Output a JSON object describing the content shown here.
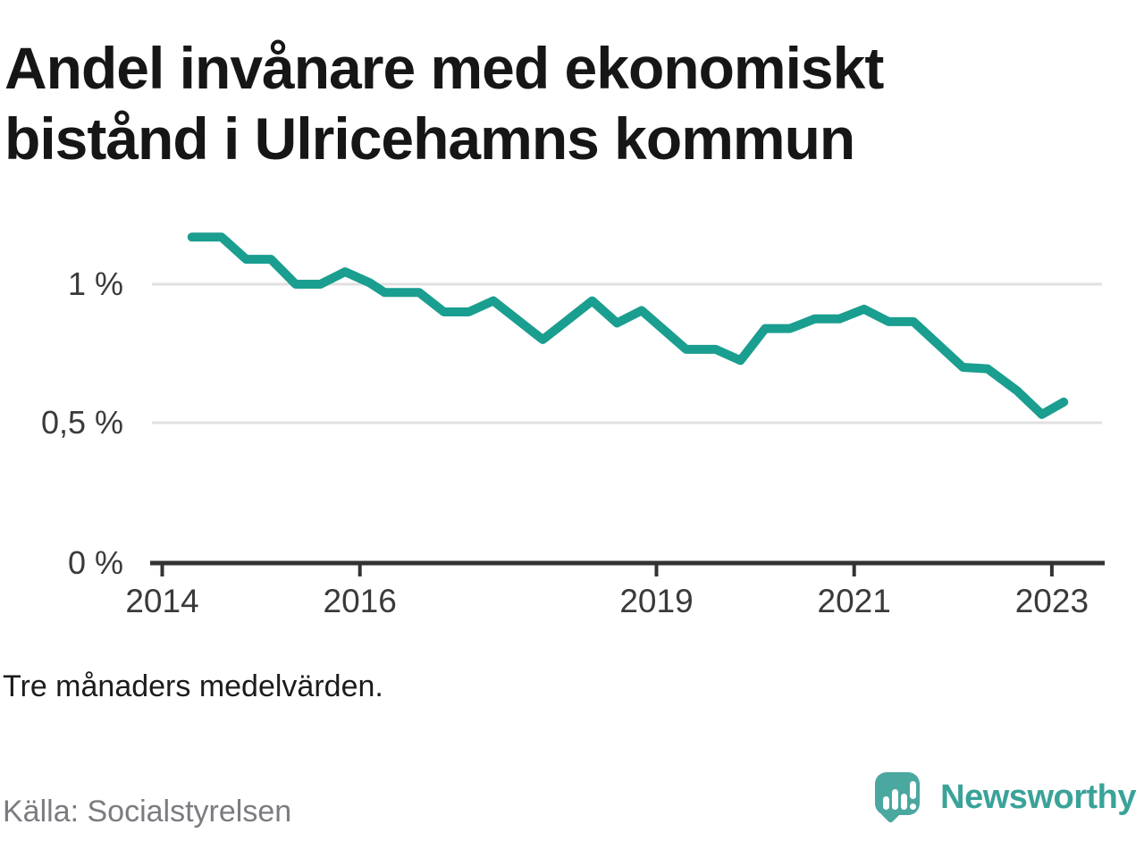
{
  "title": {
    "line1": "Andel invånare med ekonomiskt",
    "line2": "bistånd i Ulricehamns kommun"
  },
  "note": "Tre månaders medelvärden.",
  "source": "Källa: Socialstyrelsen",
  "logo": {
    "text": "Newsworthy"
  },
  "colors": {
    "line": "#1a9e8f",
    "grid": "#e0e0e0",
    "axis": "#333333",
    "tick_label": "#3a3a3a",
    "title": "#161616",
    "note": "#1c1c1c",
    "source": "#7c7b80",
    "logo_bubble": "#4aa8a0",
    "logo_text": "#3aa299"
  },
  "chart_data": {
    "type": "line",
    "title": "Andel invånare med ekonomiskt bistånd i Ulricehamns kommun",
    "subtitle_note": "Tre månaders medelvärden.",
    "xlabel": "",
    "ylabel": "",
    "x_unit": "år (decimal)",
    "y_unit": "% av invånare",
    "xlim": [
      2013.9,
      2023.55
    ],
    "ylim": [
      0,
      1.25
    ],
    "grid": "horizontal",
    "legend": "none",
    "xticks": [
      {
        "value": 2014,
        "label": "2014"
      },
      {
        "value": 2016,
        "label": "2016"
      },
      {
        "value": 2019,
        "label": "2019"
      },
      {
        "value": 2021,
        "label": "2021"
      },
      {
        "value": 2023,
        "label": "2023"
      }
    ],
    "yticks": [
      {
        "value": 1,
        "label": "1 %"
      },
      {
        "value": 0.5,
        "label": "0,5 %"
      },
      {
        "value": 0,
        "label": "0 %"
      }
    ],
    "series": [
      {
        "name": "Andel invånare med ekonomiskt bistånd",
        "color": "#1a9e8f",
        "points": [
          [
            2014.3,
            1.17
          ],
          [
            2014.6,
            1.17
          ],
          [
            2014.85,
            1.09
          ],
          [
            2015.1,
            1.09
          ],
          [
            2015.35,
            1.0
          ],
          [
            2015.6,
            1.0
          ],
          [
            2015.85,
            1.045
          ],
          [
            2016.1,
            1.005
          ],
          [
            2016.25,
            0.97
          ],
          [
            2016.6,
            0.97
          ],
          [
            2016.85,
            0.9
          ],
          [
            2017.1,
            0.9
          ],
          [
            2017.35,
            0.94
          ],
          [
            2017.85,
            0.8
          ],
          [
            2018.35,
            0.94
          ],
          [
            2018.6,
            0.86
          ],
          [
            2018.85,
            0.905
          ],
          [
            2019.3,
            0.765
          ],
          [
            2019.6,
            0.765
          ],
          [
            2019.85,
            0.725
          ],
          [
            2020.1,
            0.84
          ],
          [
            2020.35,
            0.84
          ],
          [
            2020.6,
            0.875
          ],
          [
            2020.85,
            0.875
          ],
          [
            2021.1,
            0.91
          ],
          [
            2021.35,
            0.865
          ],
          [
            2021.6,
            0.865
          ],
          [
            2022.1,
            0.7
          ],
          [
            2022.35,
            0.695
          ],
          [
            2022.65,
            0.615
          ],
          [
            2022.9,
            0.53
          ],
          [
            2023.12,
            0.575
          ]
        ]
      }
    ]
  }
}
